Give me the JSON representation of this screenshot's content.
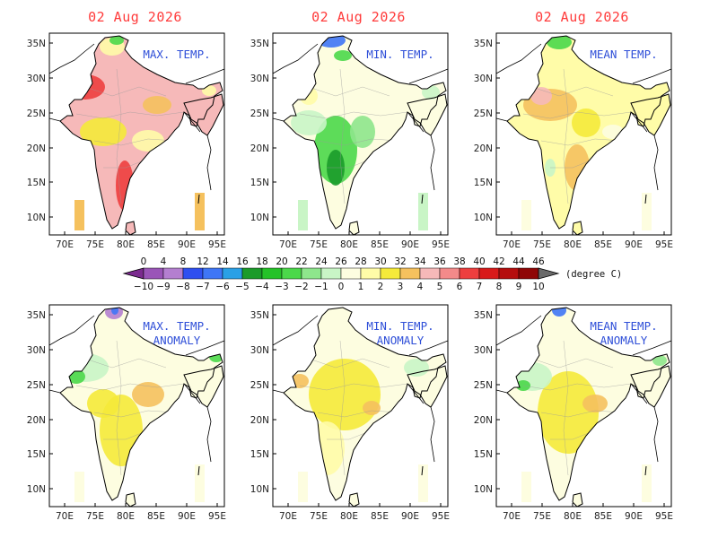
{
  "date": "02 Aug 2026",
  "panels": [
    {
      "id": "max-temp",
      "title_lines": [
        "MAX. TEMP."
      ],
      "show_date": true,
      "palette": "hot"
    },
    {
      "id": "min-temp",
      "title_lines": [
        "MIN. TEMP."
      ],
      "show_date": true,
      "palette": "cool"
    },
    {
      "id": "mean-temp",
      "title_lines": [
        "MEAN TEMP."
      ],
      "show_date": true,
      "palette": "mid"
    },
    {
      "id": "max-temp-anomaly",
      "title_lines": [
        "MAX. TEMP.",
        "ANOMALY"
      ],
      "show_date": false,
      "palette": "anom1"
    },
    {
      "id": "min-temp-anomaly",
      "title_lines": [
        "MIN. TEMP.",
        "ANOMALY"
      ],
      "show_date": false,
      "palette": "anom2"
    },
    {
      "id": "mean-temp-anomaly",
      "title_lines": [
        "MEAN TEMP.",
        "ANOMALY"
      ],
      "show_date": false,
      "palette": "anom3"
    }
  ],
  "lat_ticks": [
    "10N",
    "15N",
    "20N",
    "25N",
    "30N",
    "35N"
  ],
  "lon_ticks": [
    "70E",
    "75E",
    "80E",
    "85E",
    "90E",
    "95E"
  ],
  "colorbar": {
    "top_labels": [
      "0",
      "4",
      "8",
      "12",
      "14",
      "16",
      "18",
      "20",
      "22",
      "24",
      "26",
      "28",
      "30",
      "32",
      "34",
      "36",
      "38",
      "40",
      "42",
      "44",
      "46"
    ],
    "bottom_labels": [
      "-10",
      "-9",
      "-8",
      "-7",
      "-6",
      "-5",
      "-4",
      "-3",
      "-2",
      "-1",
      "0",
      "1",
      "2",
      "3",
      "4",
      "5",
      "6",
      "7",
      "8",
      "9",
      "10"
    ],
    "colors": [
      "#7b2b8f",
      "#9a55b8",
      "#b47fd0",
      "#2f4ff0",
      "#3f76f6",
      "#2aa0e6",
      "#1b9b2a",
      "#25c228",
      "#4bd84a",
      "#8ee68c",
      "#c9f5c6",
      "#fdfde0",
      "#fffca8",
      "#f5ea3a",
      "#f5c15e",
      "#f6b9b9",
      "#f38a8a",
      "#ee3f3f",
      "#d81a1a",
      "#b50e0e",
      "#8f0606",
      "#6a0505"
    ],
    "unit": "(degree C)"
  }
}
